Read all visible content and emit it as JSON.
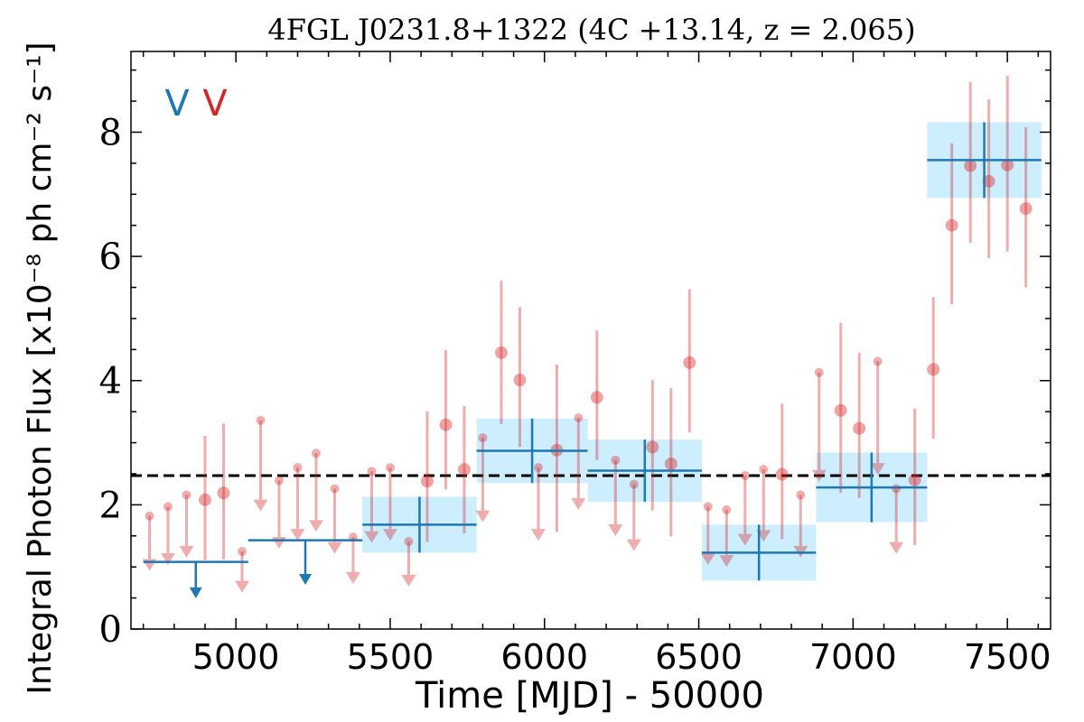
{
  "chart_data": {
    "type": "scatter",
    "title": "4FGL J0231.8+1322 (4C +13.14, z = 2.065)",
    "xlabel": "Time [MJD] - 50000",
    "ylabel": "Integral Photon Flux [x10⁻⁸ ph cm⁻² s⁻¹]",
    "xlim": [
      4660,
      7640
    ],
    "ylim": [
      0,
      9.3
    ],
    "xticks": [
      "5000",
      "5500",
      "6000",
      "6500",
      "7000",
      "7500"
    ],
    "yticks": [
      "0",
      "2",
      "4",
      "6",
      "8"
    ],
    "legend_markers": [
      "V",
      "V"
    ],
    "legend_placement": "top-left",
    "colors": {
      "long_bins": "#1f77b4",
      "short_bins": "#d62728",
      "bin_box": "#cceeff",
      "mean_line": "#000000"
    },
    "mean_flux": 2.47,
    "long_bins": [
      {
        "t0": 4700,
        "t1": 5040,
        "t": 4870,
        "flux": 1.08,
        "upper_limit": true
      },
      {
        "t0": 5040,
        "t1": 5410,
        "t": 5225,
        "flux": 1.43,
        "upper_limit": true
      },
      {
        "t0": 5410,
        "t1": 5780,
        "t": 5595,
        "flux": 1.68,
        "err": 0.45,
        "upper_limit": false
      },
      {
        "t0": 5780,
        "t1": 6140,
        "t": 5960,
        "flux": 2.87,
        "err": 0.52,
        "upper_limit": false
      },
      {
        "t0": 6140,
        "t1": 6510,
        "t": 6325,
        "flux": 2.55,
        "err": 0.5,
        "upper_limit": false
      },
      {
        "t0": 6510,
        "t1": 6880,
        "t": 6695,
        "flux": 1.23,
        "err": 0.45,
        "upper_limit": false
      },
      {
        "t0": 6880,
        "t1": 7240,
        "t": 7060,
        "flux": 2.28,
        "err": 0.56,
        "upper_limit": false
      },
      {
        "t0": 7240,
        "t1": 7610,
        "t": 7425,
        "flux": 7.55,
        "err": 0.61,
        "upper_limit": false
      }
    ],
    "short_bins": [
      {
        "t": 4720,
        "flux": 1.82,
        "upper_limit": true
      },
      {
        "t": 4780,
        "flux": 1.97,
        "upper_limit": true
      },
      {
        "t": 4840,
        "flux": 2.16,
        "upper_limit": true
      },
      {
        "t": 4900,
        "flux": 2.08,
        "err_lo": 0.97,
        "err_hi": 1.03,
        "upper_limit": false
      },
      {
        "t": 4960,
        "flux": 2.19,
        "err_lo": 1.07,
        "err_hi": 1.12,
        "upper_limit": false
      },
      {
        "t": 5020,
        "flux": 1.25,
        "upper_limit": true
      },
      {
        "t": 5080,
        "flux": 3.36,
        "upper_limit": true
      },
      {
        "t": 5140,
        "flux": 2.39,
        "upper_limit": true
      },
      {
        "t": 5200,
        "flux": 2.6,
        "upper_limit": true
      },
      {
        "t": 5260,
        "flux": 2.83,
        "upper_limit": true
      },
      {
        "t": 5320,
        "flux": 2.26,
        "upper_limit": true
      },
      {
        "t": 5380,
        "flux": 1.48,
        "upper_limit": true
      },
      {
        "t": 5440,
        "flux": 2.54,
        "upper_limit": true
      },
      {
        "t": 5500,
        "flux": 2.6,
        "upper_limit": true
      },
      {
        "t": 5560,
        "flux": 1.41,
        "upper_limit": true
      },
      {
        "t": 5620,
        "flux": 2.38,
        "err_lo": 0.98,
        "err_hi": 1.13,
        "upper_limit": false
      },
      {
        "t": 5680,
        "flux": 3.29,
        "err_lo": 1.04,
        "err_hi": 1.2,
        "upper_limit": false
      },
      {
        "t": 5740,
        "flux": 2.57,
        "err_lo": 1.03,
        "err_hi": 1.02,
        "upper_limit": false
      },
      {
        "t": 5800,
        "flux": 3.08,
        "upper_limit": true
      },
      {
        "t": 5860,
        "flux": 4.45,
        "err_lo": 1.15,
        "err_hi": 1.16,
        "upper_limit": false
      },
      {
        "t": 5920,
        "flux": 4.01,
        "err_lo": 1.08,
        "err_hi": 1.17,
        "upper_limit": false
      },
      {
        "t": 5980,
        "flux": 2.6,
        "upper_limit": true
      },
      {
        "t": 6040,
        "flux": 2.88,
        "err_lo": 1.32,
        "err_hi": 1.38,
        "upper_limit": false
      },
      {
        "t": 6110,
        "flux": 3.4,
        "upper_limit": true
      },
      {
        "t": 6170,
        "flux": 3.73,
        "err_lo": 1.01,
        "err_hi": 1.08,
        "upper_limit": false
      },
      {
        "t": 6230,
        "flux": 2.72,
        "upper_limit": true
      },
      {
        "t": 6290,
        "flux": 2.33,
        "upper_limit": true
      },
      {
        "t": 6350,
        "flux": 2.93,
        "err_lo": 1.02,
        "err_hi": 1.08,
        "upper_limit": false
      },
      {
        "t": 6410,
        "flux": 2.66,
        "err_lo": 1.17,
        "err_hi": 1.22,
        "upper_limit": false
      },
      {
        "t": 6470,
        "flux": 4.29,
        "err_lo": 1.12,
        "err_hi": 1.18,
        "upper_limit": false
      },
      {
        "t": 6530,
        "flux": 1.97,
        "upper_limit": true
      },
      {
        "t": 6590,
        "flux": 1.92,
        "upper_limit": true
      },
      {
        "t": 6650,
        "flux": 2.47,
        "upper_limit": true
      },
      {
        "t": 6710,
        "flux": 2.57,
        "upper_limit": true
      },
      {
        "t": 6770,
        "flux": 2.49,
        "err_lo": 1.04,
        "err_hi": 1.14,
        "upper_limit": false
      },
      {
        "t": 6830,
        "flux": 2.16,
        "upper_limit": true
      },
      {
        "t": 6890,
        "flux": 4.13,
        "upper_limit": true
      },
      {
        "t": 6960,
        "flux": 3.52,
        "err_lo": 1.33,
        "err_hi": 1.41,
        "upper_limit": false
      },
      {
        "t": 7020,
        "flux": 3.23,
        "err_lo": 1.12,
        "err_hi": 1.22,
        "upper_limit": false
      },
      {
        "t": 7080,
        "flux": 4.31,
        "upper_limit": true
      },
      {
        "t": 7140,
        "flux": 2.26,
        "upper_limit": true
      },
      {
        "t": 7200,
        "flux": 2.4,
        "err_lo": 1.05,
        "err_hi": 1.15,
        "upper_limit": false
      },
      {
        "t": 7260,
        "flux": 4.18,
        "err_lo": 1.12,
        "err_hi": 1.17,
        "upper_limit": false
      },
      {
        "t": 7320,
        "flux": 6.5,
        "err_lo": 1.27,
        "err_hi": 1.32,
        "upper_limit": false
      },
      {
        "t": 7380,
        "flux": 7.46,
        "err_lo": 1.24,
        "err_hi": 1.35,
        "upper_limit": false
      },
      {
        "t": 7440,
        "flux": 7.21,
        "err_lo": 1.24,
        "err_hi": 1.32,
        "upper_limit": false
      },
      {
        "t": 7500,
        "flux": 7.47,
        "err_lo": 1.39,
        "err_hi": 1.44,
        "upper_limit": false
      },
      {
        "t": 7560,
        "flux": 6.77,
        "err_lo": 1.27,
        "err_hi": 1.31,
        "upper_limit": false
      }
    ]
  }
}
